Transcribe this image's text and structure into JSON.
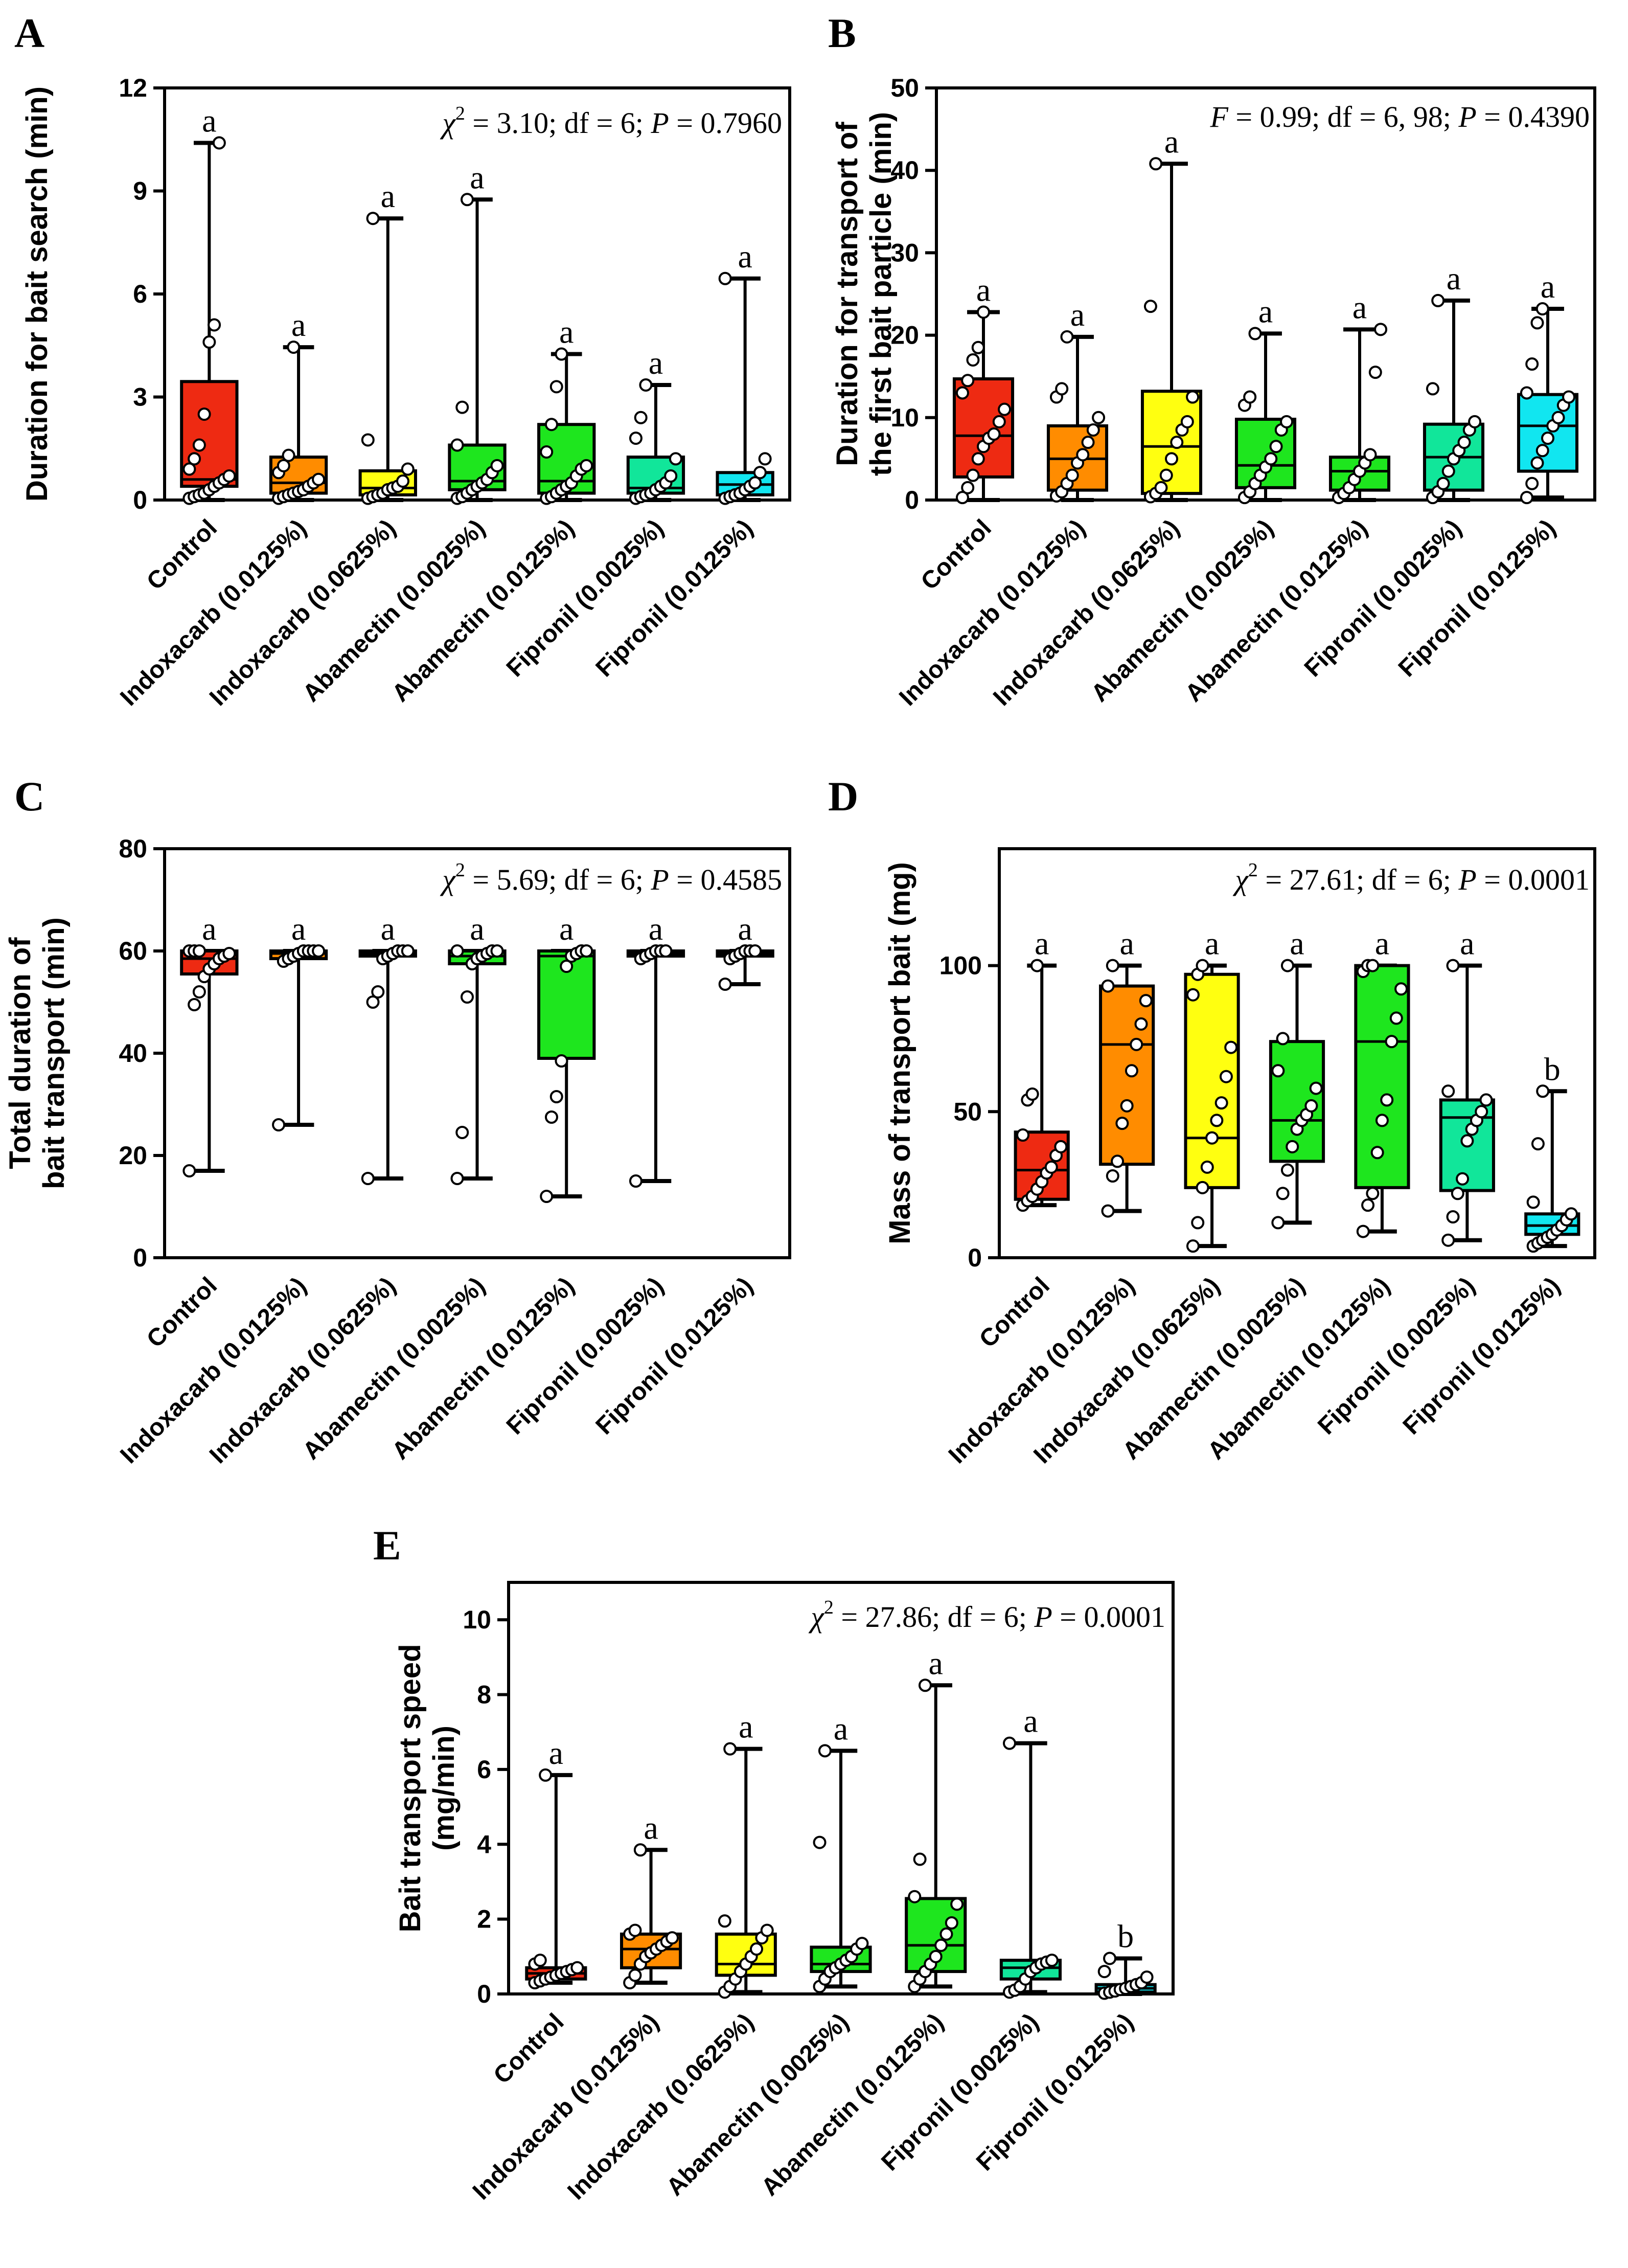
{
  "chart_data": [
    {
      "panel": "A",
      "type": "box",
      "ylabel": "Duration for bait search (min)",
      "ylim": [
        0,
        12
      ],
      "yticks": [
        0,
        3,
        6,
        9,
        12
      ],
      "stat": {
        "symbol": "χ",
        "sup": "2",
        "text": " = 3.10; df = 6; ",
        "p_symbol": "P",
        "p_text": " = 0.7960"
      },
      "categories": [
        "Control",
        "Indoxacarb (0.0125%)",
        "Indoxacarb (0.0625%)",
        "Abamectin (0.0025%)",
        "Abamectin (0.0125%)",
        "Fipronil (0.0025%)",
        "Fipronil (0.0125%)"
      ],
      "groups": [
        {
          "min": 0.0,
          "q1": 0.4,
          "median": 0.6,
          "q3": 3.45,
          "max": 10.4,
          "letter": "a",
          "color": "#ee2a12",
          "points": [
            0.05,
            0.1,
            0.15,
            0.2,
            0.3,
            0.4,
            0.5,
            0.6,
            0.7,
            0.9,
            1.2,
            1.6,
            2.5,
            4.6,
            5.1,
            10.4
          ]
        },
        {
          "min": 0.0,
          "q1": 0.2,
          "median": 0.5,
          "q3": 1.25,
          "max": 4.45,
          "letter": "a",
          "color": "#ff8c00",
          "points": [
            0.05,
            0.1,
            0.15,
            0.2,
            0.25,
            0.3,
            0.4,
            0.5,
            0.6,
            0.8,
            1.0,
            1.3,
            4.45
          ]
        },
        {
          "min": 0.0,
          "q1": 0.15,
          "median": 0.35,
          "q3": 0.85,
          "max": 8.2,
          "letter": "a",
          "color": "#ffff10",
          "points": [
            0.05,
            0.1,
            0.15,
            0.2,
            0.3,
            0.35,
            0.4,
            0.55,
            0.9,
            1.75,
            8.2
          ]
        },
        {
          "min": 0.0,
          "q1": 0.3,
          "median": 0.55,
          "q3": 1.6,
          "max": 8.75,
          "letter": "a",
          "color": "#1ee61e",
          "points": [
            0.05,
            0.1,
            0.2,
            0.3,
            0.4,
            0.5,
            0.6,
            0.8,
            1.0,
            1.6,
            2.7,
            8.75
          ]
        },
        {
          "min": 0.0,
          "q1": 0.2,
          "median": 0.55,
          "q3": 2.2,
          "max": 4.25,
          "letter": "a",
          "color": "#1ee61e",
          "points": [
            0.05,
            0.1,
            0.2,
            0.3,
            0.4,
            0.5,
            0.7,
            0.9,
            1.0,
            1.4,
            2.2,
            3.3,
            4.25
          ]
        },
        {
          "min": 0.0,
          "q1": 0.2,
          "median": 0.35,
          "q3": 1.25,
          "max": 3.35,
          "letter": "a",
          "color": "#11e69a",
          "points": [
            0.05,
            0.1,
            0.15,
            0.2,
            0.3,
            0.4,
            0.5,
            0.7,
            1.2,
            1.8,
            2.4,
            3.35
          ]
        },
        {
          "min": 0.0,
          "q1": 0.15,
          "median": 0.45,
          "q3": 0.8,
          "max": 6.45,
          "letter": "a",
          "color": "#11e6f0",
          "points": [
            0.05,
            0.1,
            0.15,
            0.2,
            0.3,
            0.4,
            0.5,
            0.8,
            1.2,
            6.45
          ]
        }
      ]
    },
    {
      "panel": "B",
      "type": "box",
      "ylabel": "Duration for transport of\nthe first bait particle (min)",
      "ylim": [
        0,
        50
      ],
      "yticks": [
        0,
        10,
        20,
        30,
        40,
        50
      ],
      "stat": {
        "symbol": "F",
        "sup": "",
        "text": " = 0.99; df = 6, 98; ",
        "p_symbol": "P",
        "p_text": " = 0.4390"
      },
      "categories": [
        "Control",
        "Indoxacarb (0.0125%)",
        "Indoxacarb (0.0625%)",
        "Abamectin (0.0025%)",
        "Abamectin (0.0125%)",
        "Fipronil (0.0025%)",
        "Fipronil (0.0125%)"
      ],
      "groups": [
        {
          "min": 0.0,
          "q1": 2.8,
          "median": 7.8,
          "q3": 14.7,
          "max": 22.8,
          "letter": "a",
          "color": "#ee2a12",
          "points": [
            0.3,
            1.5,
            3.0,
            5.0,
            6.5,
            7.5,
            8.0,
            9.5,
            11.0,
            13.0,
            14.5,
            17.0,
            18.5,
            22.8
          ]
        },
        {
          "min": 0.0,
          "q1": 1.2,
          "median": 5.0,
          "q3": 9.0,
          "max": 19.8,
          "letter": "a",
          "color": "#ff8c00",
          "points": [
            0.5,
            1.0,
            2.0,
            3.0,
            4.5,
            5.5,
            7.0,
            8.5,
            10.0,
            12.5,
            13.5,
            19.8
          ]
        },
        {
          "min": 0.0,
          "q1": 0.8,
          "median": 6.5,
          "q3": 13.2,
          "max": 40.8,
          "letter": "a",
          "color": "#ffff10",
          "points": [
            0.4,
            0.8,
            1.5,
            3.0,
            5.0,
            7.0,
            8.5,
            9.5,
            12.5,
            23.5,
            40.8
          ]
        },
        {
          "min": 0.0,
          "q1": 1.5,
          "median": 4.2,
          "q3": 9.8,
          "max": 20.2,
          "letter": "a",
          "color": "#1ee61e",
          "points": [
            0.3,
            1.0,
            2.0,
            3.0,
            4.0,
            5.0,
            6.5,
            8.5,
            9.5,
            11.5,
            12.5,
            20.2
          ]
        },
        {
          "min": 0.0,
          "q1": 1.2,
          "median": 3.5,
          "q3": 5.2,
          "max": 20.7,
          "letter": "a",
          "color": "#1ee61e",
          "points": [
            0.3,
            0.8,
            1.5,
            2.5,
            3.5,
            4.5,
            5.5,
            15.5,
            20.7
          ]
        },
        {
          "min": 0.0,
          "q1": 1.2,
          "median": 5.2,
          "q3": 9.2,
          "max": 24.2,
          "letter": "a",
          "color": "#11e69a",
          "points": [
            0.3,
            1.0,
            2.0,
            3.5,
            5.0,
            6.0,
            7.0,
            8.5,
            9.5,
            13.5,
            24.2
          ]
        },
        {
          "min": 0.3,
          "q1": 3.5,
          "median": 9.0,
          "q3": 12.8,
          "max": 23.2,
          "letter": "a",
          "color": "#11e6f0",
          "points": [
            0.3,
            2.0,
            4.5,
            6.0,
            7.5,
            9.0,
            10.0,
            11.5,
            12.5,
            13.0,
            16.5,
            21.5,
            23.2
          ]
        }
      ]
    },
    {
      "panel": "C",
      "type": "box",
      "ylabel": "Total duration of\nbait transport (min)",
      "ylim": [
        0,
        80
      ],
      "yticks": [
        0,
        20,
        40,
        60,
        80
      ],
      "stat": {
        "symbol": "χ",
        "sup": "2",
        "text": " = 5.69; df = 6; ",
        "p_symbol": "P",
        "p_text": " = 0.4585"
      },
      "categories": [
        "Control",
        "Indoxacarb (0.0125%)",
        "Indoxacarb (0.0625%)",
        "Abamectin (0.0025%)",
        "Abamectin (0.0125%)",
        "Fipronil (0.0025%)",
        "Fipronil (0.0125%)"
      ],
      "groups": [
        {
          "min": 17.0,
          "q1": 55.5,
          "median": 58.5,
          "q3": 60.0,
          "max": 60.0,
          "letter": "a",
          "color": "#ee2a12",
          "points": [
            17.0,
            49.5,
            52.0,
            55.0,
            56.5,
            57.5,
            58.5,
            59.0,
            59.5,
            60.0,
            60.0,
            60.0
          ]
        },
        {
          "min": 26.0,
          "q1": 58.5,
          "median": 59.5,
          "q3": 60.0,
          "max": 60.0,
          "letter": "a",
          "color": "#ff8c00",
          "points": [
            26.0,
            58.0,
            58.5,
            59.0,
            59.5,
            60.0,
            60.0,
            60.0,
            60.0
          ]
        },
        {
          "min": 15.5,
          "q1": 59.0,
          "median": 59.5,
          "q3": 60.0,
          "max": 60.0,
          "letter": "a",
          "color": "#ffff10",
          "points": [
            15.5,
            50.0,
            52.0,
            58.5,
            59.0,
            59.5,
            60.0,
            60.0,
            60.0
          ]
        },
        {
          "min": 15.5,
          "q1": 57.5,
          "median": 59.0,
          "q3": 60.0,
          "max": 60.0,
          "letter": "a",
          "color": "#1ee61e",
          "points": [
            15.5,
            24.5,
            51.0,
            57.5,
            58.5,
            59.0,
            59.5,
            60.0,
            60.0,
            60.0
          ]
        },
        {
          "min": 12.0,
          "q1": 39.0,
          "median": 59.0,
          "q3": 60.0,
          "max": 60.0,
          "letter": "a",
          "color": "#1ee61e",
          "points": [
            12.0,
            27.5,
            31.5,
            38.5,
            57.0,
            59.0,
            59.5,
            60.0,
            60.0
          ]
        },
        {
          "min": 15.0,
          "q1": 59.0,
          "median": 59.5,
          "q3": 60.0,
          "max": 60.0,
          "letter": "a",
          "color": "#11e69a",
          "points": [
            15.0,
            58.5,
            59.0,
            59.5,
            60.0,
            60.0,
            60.0
          ]
        },
        {
          "min": 53.5,
          "q1": 59.0,
          "median": 59.5,
          "q3": 60.0,
          "max": 60.0,
          "letter": "a",
          "color": "#11e6f0",
          "points": [
            53.5,
            58.5,
            59.0,
            59.5,
            60.0,
            60.0,
            60.0
          ]
        }
      ]
    },
    {
      "panel": "D",
      "type": "box",
      "ylabel": "Mass of transport bait (mg)",
      "ylim": [
        0,
        140
      ],
      "yticks": [
        0,
        50,
        100
      ],
      "stat": {
        "symbol": "χ",
        "sup": "2",
        "text": " = 27.61; df = 6; ",
        "p_symbol": "P",
        "p_text": " = 0.0001"
      },
      "categories": [
        "Control",
        "Indoxacarb (0.0125%)",
        "Indoxacarb (0.0625%)",
        "Abamectin (0.0025%)",
        "Abamectin (0.0125%)",
        "Fipronil (0.0025%)",
        "Fipronil (0.0125%)"
      ],
      "groups": [
        {
          "min": 18.0,
          "q1": 20.0,
          "median": 30.0,
          "q3": 43.0,
          "max": 100.0,
          "letter": "a",
          "color": "#ee2a12",
          "points": [
            18.0,
            19.5,
            21.0,
            23.5,
            26.0,
            29.0,
            31.0,
            35.0,
            38.0,
            42.0,
            54.0,
            56.0,
            100.0
          ]
        },
        {
          "min": 16.0,
          "q1": 32.0,
          "median": 73.0,
          "q3": 93.0,
          "max": 100.0,
          "letter": "a",
          "color": "#ff8c00",
          "points": [
            16.0,
            28.0,
            33.0,
            46.0,
            52.0,
            64.0,
            73.0,
            80.0,
            88.0,
            93.0,
            100.0
          ]
        },
        {
          "min": 4.0,
          "q1": 24.0,
          "median": 41.0,
          "q3": 97.0,
          "max": 100.0,
          "letter": "a",
          "color": "#ffff10",
          "points": [
            4.0,
            12.0,
            24.0,
            31.0,
            41.0,
            47.0,
            53.0,
            62.0,
            72.0,
            90.0,
            97.0,
            100.0
          ]
        },
        {
          "min": 12.0,
          "q1": 33.0,
          "median": 47.0,
          "q3": 74.0,
          "max": 100.0,
          "letter": "a",
          "color": "#1ee61e",
          "points": [
            12.0,
            22.0,
            30.0,
            38.0,
            44.0,
            47.0,
            49.0,
            52.0,
            58.0,
            64.0,
            75.0,
            100.0
          ]
        },
        {
          "min": 9.0,
          "q1": 24.0,
          "median": 74.0,
          "q3": 100.0,
          "max": 100.0,
          "letter": "a",
          "color": "#1ee61e",
          "points": [
            9.0,
            18.0,
            22.0,
            36.0,
            47.0,
            54.0,
            74.0,
            82.0,
            92.0,
            98.0,
            100.0,
            100.0
          ]
        },
        {
          "min": 6.0,
          "q1": 23.0,
          "median": 48.0,
          "q3": 54.0,
          "max": 100.0,
          "letter": "a",
          "color": "#11e69a",
          "points": [
            6.0,
            14.0,
            22.0,
            27.0,
            40.0,
            44.0,
            47.0,
            50.0,
            54.0,
            57.0,
            100.0
          ]
        },
        {
          "min": 4.0,
          "q1": 8.0,
          "median": 11.0,
          "q3": 15.0,
          "max": 57.0,
          "letter": "b",
          "color": "#11e6f0",
          "points": [
            4.0,
            5.0,
            6.0,
            7.0,
            8.0,
            9.5,
            11.0,
            13.0,
            15.0,
            19.0,
            39.0,
            57.0
          ]
        }
      ]
    },
    {
      "panel": "E",
      "type": "box",
      "ylabel": "Bait transport speed\n(mg/min)",
      "ylim": [
        0,
        11
      ],
      "yticks": [
        0,
        2,
        4,
        6,
        8,
        10
      ],
      "stat": {
        "symbol": "χ",
        "sup": "2",
        "text": " = 27.86; df = 6; ",
        "p_symbol": "P",
        "p_text": " = 0.0001"
      },
      "categories": [
        "Control",
        "Indoxacarb (0.0125%)",
        "Indoxacarb (0.0625%)",
        "Abamectin (0.0025%)",
        "Abamectin (0.0125%)",
        "Fipronil (0.0025%)",
        "Fipronil (0.0125%)"
      ],
      "groups": [
        {
          "min": 0.3,
          "q1": 0.4,
          "median": 0.55,
          "q3": 0.7,
          "max": 5.85,
          "letter": "a",
          "color": "#ee2a12",
          "points": [
            0.3,
            0.35,
            0.4,
            0.45,
            0.5,
            0.55,
            0.6,
            0.65,
            0.7,
            0.8,
            0.9,
            5.85
          ]
        },
        {
          "min": 0.3,
          "q1": 0.7,
          "median": 1.2,
          "q3": 1.6,
          "max": 3.85,
          "letter": "a",
          "color": "#ff8c00",
          "points": [
            0.3,
            0.5,
            0.8,
            1.0,
            1.1,
            1.2,
            1.3,
            1.4,
            1.5,
            1.6,
            1.7,
            3.85
          ]
        },
        {
          "min": 0.05,
          "q1": 0.5,
          "median": 0.8,
          "q3": 1.6,
          "max": 6.55,
          "letter": "a",
          "color": "#ffff10",
          "points": [
            0.05,
            0.2,
            0.4,
            0.6,
            0.8,
            1.0,
            1.2,
            1.5,
            1.7,
            1.95,
            6.55
          ]
        },
        {
          "min": 0.2,
          "q1": 0.6,
          "median": 0.8,
          "q3": 1.25,
          "max": 6.5,
          "letter": "a",
          "color": "#1ee61e",
          "points": [
            0.2,
            0.4,
            0.6,
            0.7,
            0.8,
            0.9,
            1.0,
            1.2,
            1.35,
            4.05,
            6.5
          ]
        },
        {
          "min": 0.2,
          "q1": 0.6,
          "median": 1.3,
          "q3": 2.55,
          "max": 8.25,
          "letter": "a",
          "color": "#1ee61e",
          "points": [
            0.2,
            0.4,
            0.6,
            0.8,
            1.0,
            1.3,
            1.6,
            1.9,
            2.4,
            2.6,
            3.6,
            8.25
          ]
        },
        {
          "min": 0.05,
          "q1": 0.4,
          "median": 0.7,
          "q3": 0.9,
          "max": 6.7,
          "letter": "a",
          "color": "#11e69a",
          "points": [
            0.05,
            0.1,
            0.2,
            0.4,
            0.6,
            0.7,
            0.8,
            0.85,
            0.9,
            6.7
          ]
        },
        {
          "min": 0.0,
          "q1": 0.05,
          "median": 0.15,
          "q3": 0.25,
          "max": 0.95,
          "letter": "b",
          "color": "#11e6f0",
          "points": [
            0.02,
            0.05,
            0.08,
            0.12,
            0.15,
            0.2,
            0.25,
            0.3,
            0.45,
            0.6,
            0.95
          ]
        }
      ]
    }
  ]
}
